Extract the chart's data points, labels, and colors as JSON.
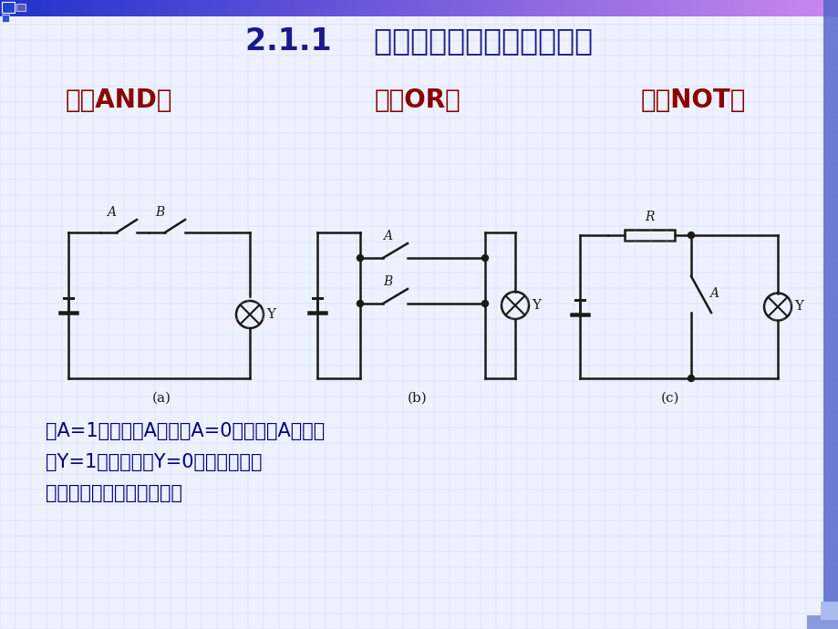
{
  "title": "2.1.1    逻辑代数中的三种基本运算",
  "title_color": "#1a1a8c",
  "title_fontsize": 24,
  "subtitle_and": "与（AND）",
  "subtitle_or": "或（OR）",
  "subtitle_not": "非（NOT）",
  "subtitle_color": "#8B0000",
  "subtitle_fontsize": 20,
  "text_lines": [
    "以A=1表示开关A合上，A=0表示开关A断开；",
    "以Y=1表示灯亮，Y=0表示等不亮；",
    "三种电路的因果关系不同："
  ],
  "text_color": "#000080",
  "text_fontsize": 15,
  "bg_color": "#eef2ff",
  "circuit_color": "#1a1a1a",
  "grid_color": "#b8ccee",
  "header_blue": "#2233cc",
  "header_purple": "#9977cc",
  "right_bar_color": "#5566cc",
  "bottom_bar_color": "#8899dd"
}
